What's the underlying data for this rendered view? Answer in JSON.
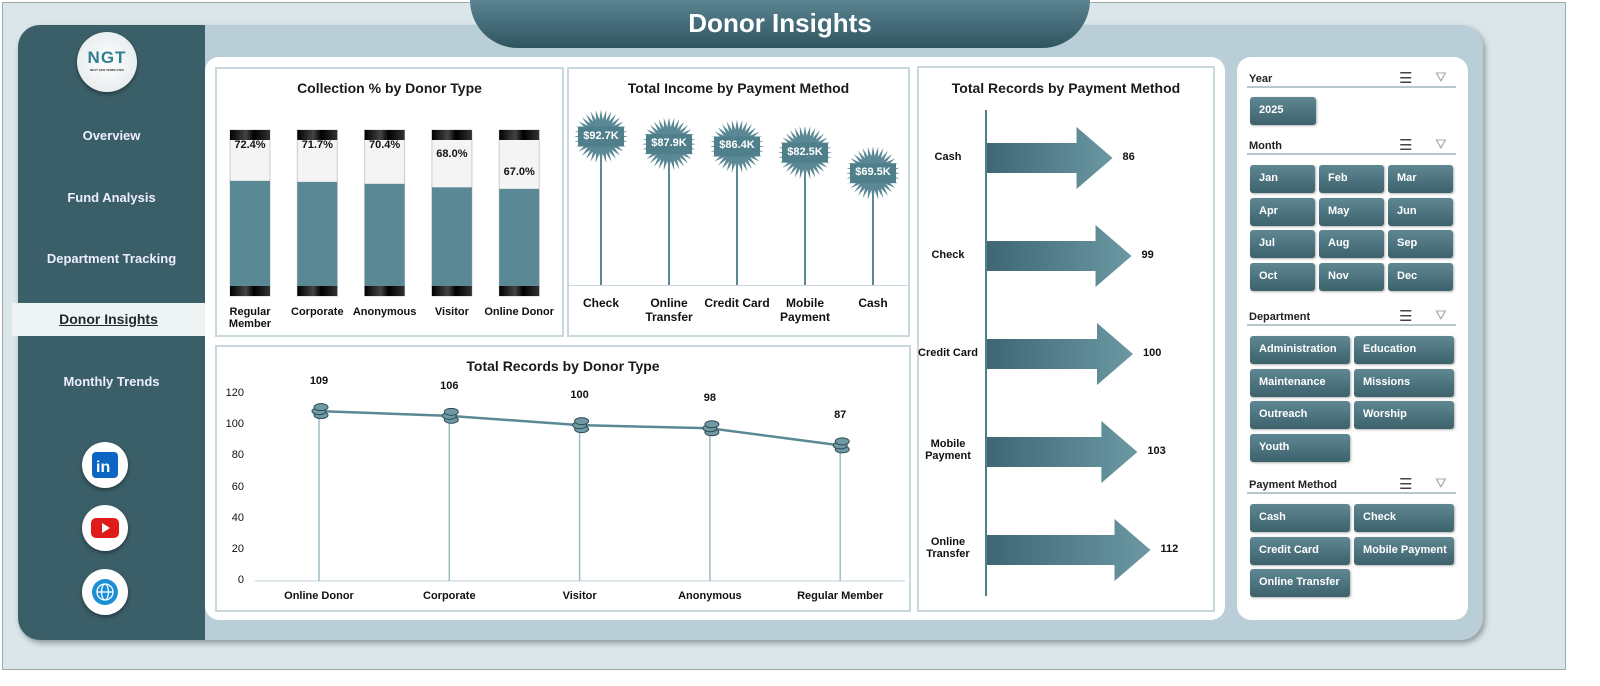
{
  "header": {
    "title": "Donor Insights"
  },
  "logo": {
    "text": "NGT",
    "subtext": "NEXT GEN TEMPLATES"
  },
  "sidebar": {
    "items": [
      {
        "label": "Overview"
      },
      {
        "label": "Fund Analysis"
      },
      {
        "label": "Department Tracking"
      },
      {
        "label": "Donor Insights",
        "active": true
      },
      {
        "label": "Monthly Trends"
      }
    ],
    "social": [
      "linkedin-icon",
      "youtube-icon",
      "globe-icon"
    ]
  },
  "colors": {
    "primary": "#3b5f68",
    "bar": "#5a8894",
    "accent": "#4f7f8b"
  },
  "chart_data": [
    {
      "type": "bar",
      "title": "Collection % by Donor Type",
      "categories": [
        "Regular Member",
        "Corporate",
        "Anonymous",
        "Visitor",
        "Online Donor"
      ],
      "values": [
        72.4,
        71.7,
        70.4,
        68.0,
        67.0
      ],
      "labels": [
        "72.4%",
        "71.7%",
        "70.4%",
        "68.0%",
        "67.0%"
      ],
      "ylim": [
        0,
        100
      ]
    },
    {
      "type": "bar",
      "title": "Total Income by Payment Method",
      "categories": [
        "Check",
        "Online Transfer",
        "Credit Card",
        "Mobile Payment",
        "Cash"
      ],
      "values": [
        92.7,
        87.9,
        86.4,
        82.5,
        69.5
      ],
      "labels": [
        "$92.7K",
        "$87.9K",
        "$86.4K",
        "$82.5K",
        "$69.5K"
      ]
    },
    {
      "type": "bar",
      "title": "Total Records by Payment Method",
      "categories": [
        "Cash",
        "Check",
        "Credit Card",
        "Mobile Payment",
        "Online Transfer"
      ],
      "values": [
        86,
        99,
        100,
        103,
        112
      ]
    },
    {
      "type": "line",
      "title": "Total Records by Donor Type",
      "categories": [
        "Online Donor",
        "Corporate",
        "Visitor",
        "Anonymous",
        "Regular Member"
      ],
      "values": [
        109,
        106,
        100,
        98,
        87
      ],
      "ylim": [
        0,
        120
      ],
      "yticks": [
        "0",
        "20",
        "40",
        "60",
        "80",
        "100",
        "120"
      ]
    }
  ],
  "slicers": {
    "year": {
      "label": "Year",
      "options": [
        "2025"
      ]
    },
    "month": {
      "label": "Month",
      "options": [
        "Jan",
        "Feb",
        "Mar",
        "Apr",
        "May",
        "Jun",
        "Jul",
        "Aug",
        "Sep",
        "Oct",
        "Nov",
        "Dec"
      ]
    },
    "department": {
      "label": "Department",
      "options": [
        "Administration",
        "Education",
        "Maintenance",
        "Missions",
        "Outreach",
        "Worship",
        "Youth"
      ]
    },
    "payment": {
      "label": "Payment Method",
      "options": [
        "Cash",
        "Check",
        "Credit Card",
        "Mobile Payment",
        "Online Transfer"
      ]
    }
  }
}
